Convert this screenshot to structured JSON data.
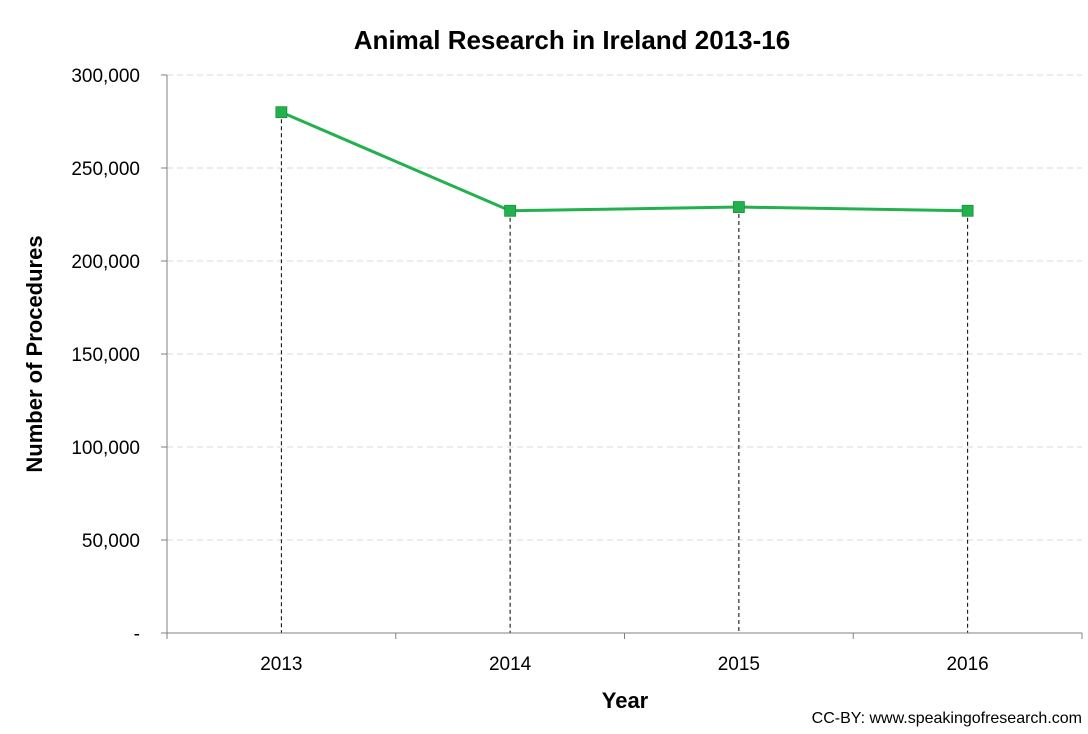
{
  "chart_data": {
    "type": "line",
    "title": "Animal Research in Ireland 2013-16",
    "xlabel": "Year",
    "ylabel": "Number of Procedures",
    "categories": [
      "2013",
      "2014",
      "2015",
      "2016"
    ],
    "series": [
      {
        "name": "Procedures",
        "values": [
          280000,
          227000,
          229000,
          227000
        ],
        "color": "#22b14c"
      }
    ],
    "ylim": [
      0,
      300000
    ],
    "yticks": [
      0,
      50000,
      100000,
      150000,
      200000,
      250000,
      300000
    ],
    "ytick_labels": [
      "-",
      "50,000",
      "100,000",
      "150,000",
      "200,000",
      "250,000",
      "300,000"
    ],
    "grid": true,
    "drop_lines": true
  },
  "credit": "CC-BY: www.speakingofresearch.com",
  "colors": {
    "line": "#22b14c",
    "marker": "#22b14c",
    "grid": "#d9d9d9",
    "axis": "#808080",
    "drop_line": "#000000"
  }
}
